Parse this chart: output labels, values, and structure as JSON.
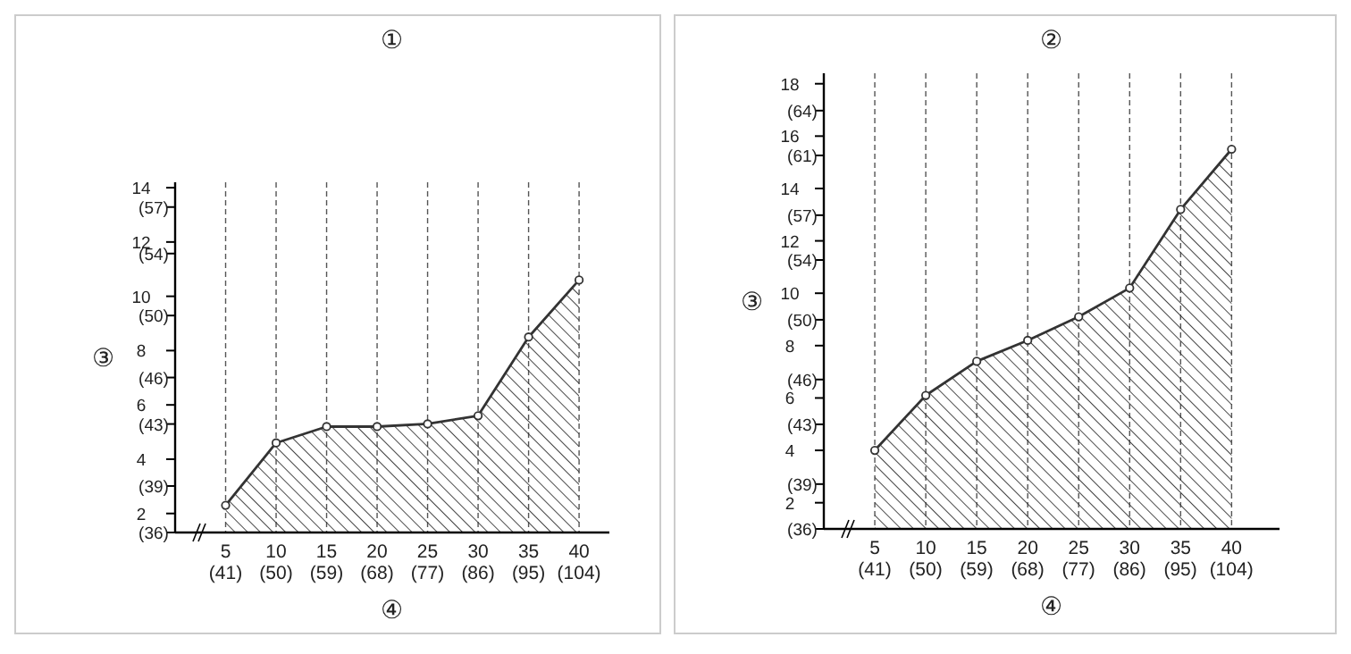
{
  "chart_data": [
    {
      "type": "area",
      "title": "①",
      "xlabel": "④",
      "ylabel": "③",
      "x": [
        5,
        10,
        15,
        20,
        25,
        30,
        35,
        40
      ],
      "series": [
        {
          "color": "#333333",
          "values": [
            2.3,
            4.6,
            5.2,
            5.2,
            5.3,
            5.6,
            8.5,
            10.6
          ]
        }
      ],
      "xlim": [
        0,
        43
      ],
      "ylim": [
        1.3,
        14.2
      ],
      "xticks": [
        5,
        10,
        15,
        20,
        25,
        30,
        35,
        40
      ],
      "x2lim": [
        32,
        109.4
      ],
      "x2ticks": [
        {
          "value": 41,
          "label": "(41)"
        },
        {
          "value": 50,
          "label": "(50)"
        },
        {
          "value": 59,
          "label": "(59)"
        },
        {
          "value": 68,
          "label": "(68)"
        },
        {
          "value": 77,
          "label": "(77)"
        },
        {
          "value": 86,
          "label": "(86)"
        },
        {
          "value": 95,
          "label": "(95)"
        },
        {
          "value": 104,
          "label": "(104)"
        }
      ],
      "yticks": [
        2,
        4,
        6,
        8,
        10,
        12,
        14
      ],
      "y2lim": [
        36,
        58.6
      ],
      "y2ticks": [
        {
          "value": 36,
          "label": "(36)"
        },
        {
          "value": 39,
          "label": "(39)"
        },
        {
          "value": 43,
          "label": "(43)"
        },
        {
          "value": 46,
          "label": "(46)"
        },
        {
          "value": 50,
          "label": "(50)"
        },
        {
          "value": 54,
          "label": "(54)"
        },
        {
          "value": 57,
          "label": "(57)"
        }
      ],
      "grid": "x",
      "marker": "circle",
      "line_style": "solid"
    },
    {
      "type": "area",
      "title": "②",
      "xlabel": "④",
      "ylabel": "③",
      "x": [
        5,
        10,
        15,
        20,
        25,
        30,
        35,
        40
      ],
      "series": [
        {
          "color": "#333333",
          "values": [
            4.0,
            6.1,
            7.4,
            8.2,
            9.1,
            10.2,
            13.2,
            15.5
          ]
        }
      ],
      "xlim": [
        0,
        44.7
      ],
      "ylim": [
        1.0,
        18.4
      ],
      "xticks": [
        5,
        10,
        15,
        20,
        25,
        30,
        35,
        40
      ],
      "x2lim": [
        32,
        112.5
      ],
      "x2ticks": [
        {
          "value": 41,
          "label": "(41)"
        },
        {
          "value": 50,
          "label": "(50)"
        },
        {
          "value": 59,
          "label": "(59)"
        },
        {
          "value": 68,
          "label": "(68)"
        },
        {
          "value": 77,
          "label": "(77)"
        },
        {
          "value": 86,
          "label": "(86)"
        },
        {
          "value": 95,
          "label": "(95)"
        },
        {
          "value": 104,
          "label": "(104)"
        }
      ],
      "yticks": [
        2,
        4,
        6,
        8,
        10,
        12,
        14,
        16,
        18
      ],
      "y2lim": [
        36,
        66.5
      ],
      "y2ticks": [
        {
          "value": 36,
          "label": "(36)"
        },
        {
          "value": 39,
          "label": "(39)"
        },
        {
          "value": 43,
          "label": "(43)"
        },
        {
          "value": 46,
          "label": "(46)"
        },
        {
          "value": 50,
          "label": "(50)"
        },
        {
          "value": 54,
          "label": "(54)"
        },
        {
          "value": 57,
          "label": "(57)"
        },
        {
          "value": 61,
          "label": "(61)"
        },
        {
          "value": 64,
          "label": "(64)"
        }
      ],
      "grid": "x",
      "marker": "circle",
      "line_style": "solid"
    }
  ]
}
